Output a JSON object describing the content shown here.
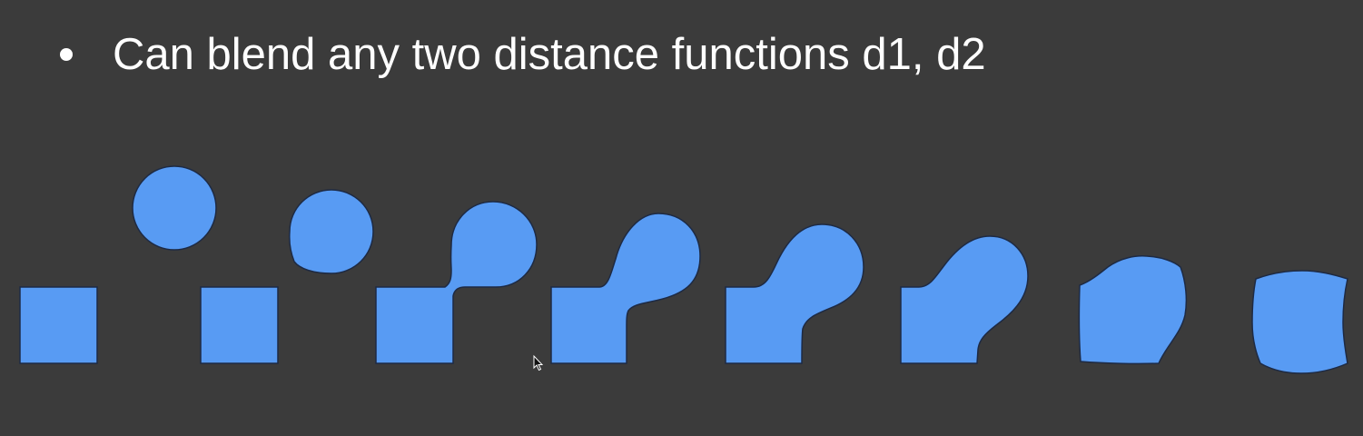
{
  "slide": {
    "bullet_text": "Can blend any two distance functions d1, d2",
    "shape_color": "#589bf3",
    "background_color": "#3b3b3b",
    "text_color": "#ffffff"
  },
  "figure": {
    "panel_count": 9,
    "description_icons": [
      "mouse-pointer-icon"
    ]
  }
}
